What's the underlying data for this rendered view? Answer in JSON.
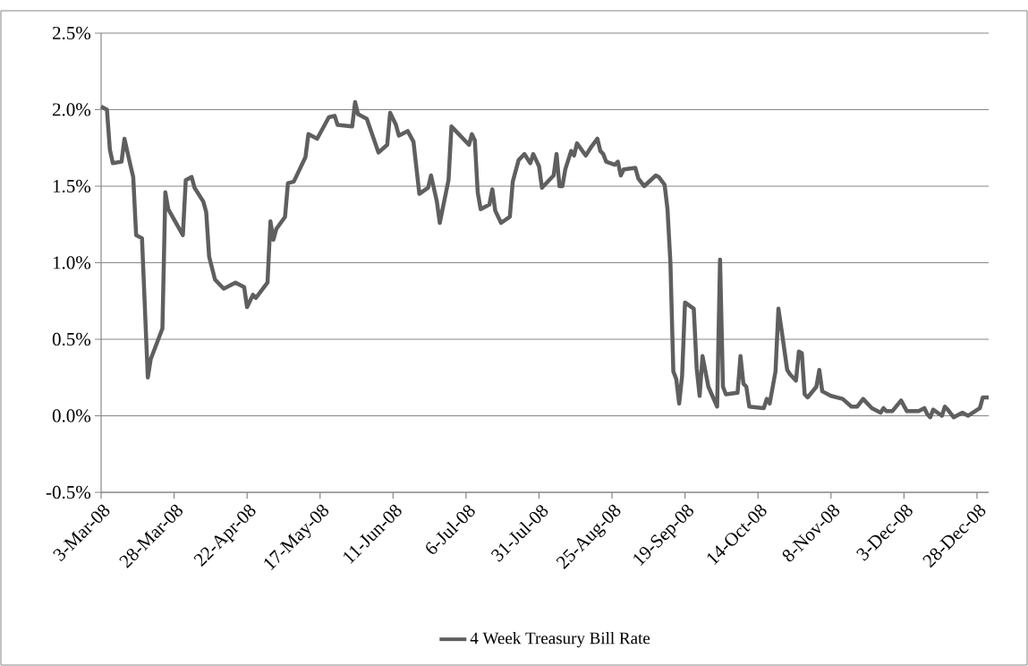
{
  "chart_data": {
    "type": "line",
    "x": [
      "2008-03-03",
      "2008-03-05",
      "2008-03-06",
      "2008-03-07",
      "2008-03-10",
      "2008-03-11",
      "2008-03-13",
      "2008-03-14",
      "2008-03-15",
      "2008-03-17",
      "2008-03-19",
      "2008-03-20",
      "2008-03-24",
      "2008-03-25",
      "2008-03-26",
      "2008-03-31",
      "2008-04-01",
      "2008-04-03",
      "2008-04-04",
      "2008-04-07",
      "2008-04-08",
      "2008-04-09",
      "2008-04-11",
      "2008-04-14",
      "2008-04-18",
      "2008-04-21",
      "2008-04-22",
      "2008-04-24",
      "2008-04-25",
      "2008-04-29",
      "2008-04-30",
      "2008-05-01",
      "2008-05-02",
      "2008-05-05",
      "2008-05-06",
      "2008-05-08",
      "2008-05-12",
      "2008-05-13",
      "2008-05-16",
      "2008-05-20",
      "2008-05-22",
      "2008-05-23",
      "2008-05-28",
      "2008-05-29",
      "2008-05-30",
      "2008-06-02",
      "2008-06-04",
      "2008-06-06",
      "2008-06-09",
      "2008-06-10",
      "2008-06-12",
      "2008-06-13",
      "2008-06-16",
      "2008-06-18",
      "2008-06-20",
      "2008-06-23",
      "2008-06-24",
      "2008-06-26",
      "2008-06-27",
      "2008-06-30",
      "2008-07-01",
      "2008-07-03",
      "2008-07-07",
      "2008-07-08",
      "2008-07-09",
      "2008-07-10",
      "2008-07-11",
      "2008-07-14",
      "2008-07-15",
      "2008-07-16",
      "2008-07-18",
      "2008-07-21",
      "2008-07-22",
      "2008-07-24",
      "2008-07-26",
      "2008-07-28",
      "2008-07-29",
      "2008-07-31",
      "2008-08-01",
      "2008-08-05",
      "2008-08-06",
      "2008-08-07",
      "2008-08-08",
      "2008-08-09",
      "2008-08-11",
      "2008-08-12",
      "2008-08-13",
      "2008-08-16",
      "2008-08-18",
      "2008-08-20",
      "2008-08-21",
      "2008-08-22",
      "2008-08-23",
      "2008-08-26",
      "2008-08-27",
      "2008-08-28",
      "2008-08-29",
      "2008-09-02",
      "2008-09-03",
      "2008-09-05",
      "2008-09-09",
      "2008-09-10",
      "2008-09-12",
      "2008-09-13",
      "2008-09-14",
      "2008-09-15",
      "2008-09-16",
      "2008-09-17",
      "2008-09-18",
      "2008-09-19",
      "2008-09-22",
      "2008-09-23",
      "2008-09-24",
      "2008-09-25",
      "2008-09-27",
      "2008-09-30",
      "2008-10-01",
      "2008-10-02",
      "2008-10-03",
      "2008-10-07",
      "2008-10-08",
      "2008-10-09",
      "2008-10-10",
      "2008-10-11",
      "2008-10-16",
      "2008-10-17",
      "2008-10-18",
      "2008-10-20",
      "2008-10-21",
      "2008-10-22",
      "2008-10-24",
      "2008-10-25",
      "2008-10-27",
      "2008-10-28",
      "2008-10-29",
      "2008-10-30",
      "2008-10-31",
      "2008-11-03",
      "2008-11-04",
      "2008-11-05",
      "2008-11-08",
      "2008-11-12",
      "2008-11-15",
      "2008-11-17",
      "2008-11-19",
      "2008-11-20",
      "2008-11-22",
      "2008-11-25",
      "2008-11-26",
      "2008-11-27",
      "2008-11-29",
      "2008-12-02",
      "2008-12-04",
      "2008-12-06",
      "2008-12-08",
      "2008-12-10",
      "2008-12-11",
      "2008-12-12",
      "2008-12-13",
      "2008-12-16",
      "2008-12-17",
      "2008-12-18",
      "2008-12-20",
      "2008-12-23",
      "2008-12-25",
      "2008-12-29",
      "2008-12-30",
      "2009-01-01"
    ],
    "series": [
      {
        "name": "4 Week Treasury Bill Rate",
        "color": "#5f5f5f",
        "values": [
          2.02,
          2.0,
          1.74,
          1.65,
          1.66,
          1.81,
          1.64,
          1.56,
          1.18,
          1.16,
          0.25,
          0.37,
          0.57,
          1.46,
          1.35,
          1.18,
          1.54,
          1.56,
          1.49,
          1.4,
          1.33,
          1.04,
          0.89,
          0.83,
          0.87,
          0.84,
          0.71,
          0.79,
          0.77,
          0.87,
          1.27,
          1.15,
          1.22,
          1.3,
          1.52,
          1.53,
          1.69,
          1.84,
          1.81,
          1.95,
          1.96,
          1.9,
          1.89,
          2.05,
          1.97,
          1.94,
          1.83,
          1.72,
          1.77,
          1.98,
          1.9,
          1.83,
          1.86,
          1.79,
          1.45,
          1.49,
          1.57,
          1.4,
          1.26,
          1.54,
          1.89,
          1.85,
          1.77,
          1.84,
          1.8,
          1.46,
          1.35,
          1.38,
          1.48,
          1.34,
          1.26,
          1.3,
          1.53,
          1.67,
          1.71,
          1.65,
          1.71,
          1.63,
          1.49,
          1.57,
          1.71,
          1.5,
          1.5,
          1.61,
          1.73,
          1.7,
          1.78,
          1.7,
          1.76,
          1.81,
          1.73,
          1.71,
          1.66,
          1.64,
          1.66,
          1.57,
          1.61,
          1.62,
          1.55,
          1.5,
          1.57,
          1.56,
          1.51,
          1.35,
          1.0,
          0.29,
          0.24,
          0.08,
          0.26,
          0.74,
          0.7,
          0.31,
          0.13,
          0.39,
          0.19,
          0.06,
          1.02,
          0.19,
          0.14,
          0.15,
          0.39,
          0.21,
          0.19,
          0.06,
          0.05,
          0.11,
          0.08,
          0.29,
          0.7,
          0.57,
          0.3,
          0.27,
          0.23,
          0.42,
          0.41,
          0.14,
          0.12,
          0.19,
          0.3,
          0.16,
          0.13,
          0.11,
          0.06,
          0.06,
          0.11,
          0.09,
          0.05,
          0.02,
          0.05,
          0.03,
          0.03,
          0.1,
          0.03,
          0.03,
          0.03,
          0.05,
          0.01,
          -0.01,
          0.04,
          0.0,
          0.06,
          0.04,
          -0.01,
          0.02,
          0.0,
          0.05,
          0.12,
          0.12
        ]
      }
    ],
    "xlim": [
      "2008-03-03",
      "2009-01-01"
    ],
    "xticks": [
      {
        "value": "2008-03-03",
        "label": "3-Mar-08"
      },
      {
        "value": "2008-03-28",
        "label": "28-Mar-08"
      },
      {
        "value": "2008-04-22",
        "label": "22-Apr-08"
      },
      {
        "value": "2008-05-17",
        "label": "17-May-08"
      },
      {
        "value": "2008-06-11",
        "label": "11-Jun-08"
      },
      {
        "value": "2008-07-06",
        "label": "6-Jul-08"
      },
      {
        "value": "2008-07-31",
        "label": "31-Jul-08"
      },
      {
        "value": "2008-08-25",
        "label": "25-Aug-08"
      },
      {
        "value": "2008-09-19",
        "label": "19-Sep-08"
      },
      {
        "value": "2008-10-14",
        "label": "14-Oct-08"
      },
      {
        "value": "2008-11-08",
        "label": "8-Nov-08"
      },
      {
        "value": "2008-12-03",
        "label": "3-Dec-08"
      },
      {
        "value": "2008-12-28",
        "label": "28-Dec-08"
      }
    ],
    "ylim": [
      -0.5,
      2.5
    ],
    "yticks": [
      {
        "value": -0.5,
        "label": "-0.5%"
      },
      {
        "value": 0,
        "label": "0.0%"
      },
      {
        "value": 0.5,
        "label": "0.5%"
      },
      {
        "value": 1,
        "label": "1.0%"
      },
      {
        "value": 1.5,
        "label": "1.5%"
      },
      {
        "value": 2,
        "label": "2.0%"
      },
      {
        "value": 2.5,
        "label": "2.5%"
      }
    ],
    "grid": "y",
    "legend": "bottom",
    "marker": "none",
    "line_style": "solid"
  }
}
